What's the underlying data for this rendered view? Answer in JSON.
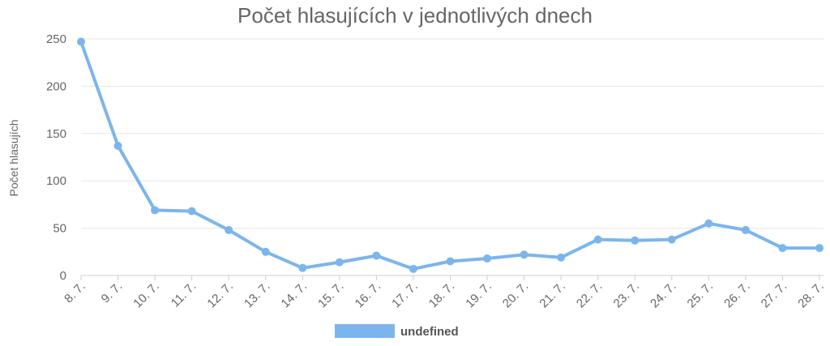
{
  "chart_data": {
    "type": "line",
    "title": "Počet hlasujících v jednotlivých dnech",
    "xlabel": "",
    "ylabel": "Počet hlasujích",
    "categories": [
      "8. 7.",
      "9. 7.",
      "10. 7.",
      "11. 7.",
      "12. 7.",
      "13. 7.",
      "14. 7.",
      "15. 7.",
      "16. 7.",
      "17. 7.",
      "18. 7.",
      "19. 7.",
      "20. 7.",
      "21. 7.",
      "22. 7.",
      "23. 7.",
      "24. 7.",
      "25. 7.",
      "26. 7.",
      "27. 7.",
      "28. 7."
    ],
    "series": [
      {
        "name": "undefined",
        "values": [
          247,
          137,
          69,
          68,
          48,
          25,
          8,
          14,
          21,
          7,
          15,
          18,
          22,
          19,
          38,
          37,
          38,
          55,
          48,
          29,
          29
        ]
      }
    ],
    "ylim": [
      0,
      250
    ],
    "yticks": [
      0,
      50,
      100,
      150,
      200,
      250
    ],
    "grid": true,
    "legend_position": "bottom",
    "colors": {
      "line": "#7cb5ec",
      "grid": "#e6e6e6",
      "text": "#666666"
    }
  }
}
